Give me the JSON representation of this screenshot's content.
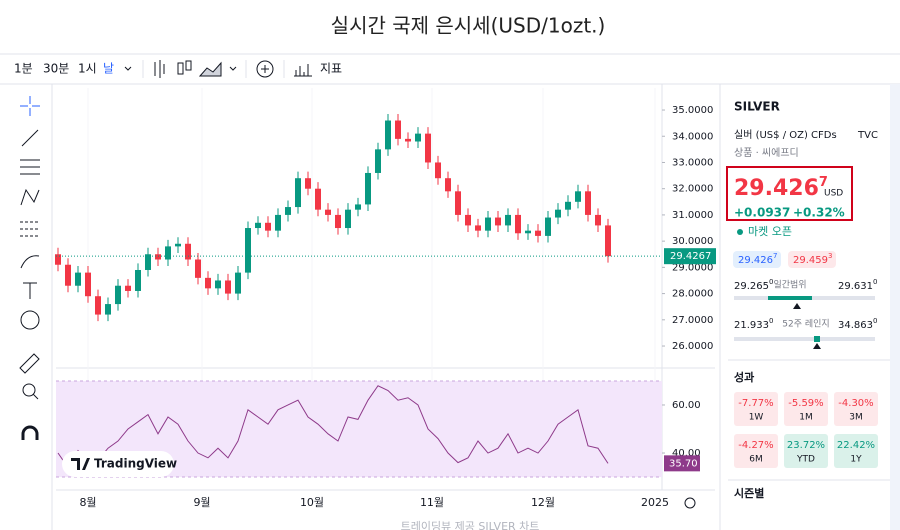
{
  "header": {
    "title": "실시간 국제 은시세(USD/1ozt.)"
  },
  "toolbar": {
    "intervals": [
      "1분",
      "30분",
      "1시",
      "날"
    ],
    "indicators": "지표"
  },
  "chart_data": {
    "type": "candlestick",
    "logo": "TradingView",
    "x": [
      0,
      1,
      2,
      3,
      4,
      5,
      6,
      7,
      8,
      9,
      10,
      11,
      12,
      13,
      14,
      15,
      16,
      17,
      18,
      19,
      20,
      21,
      22,
      23,
      24,
      25,
      26,
      27,
      28,
      29,
      30,
      31,
      32,
      33,
      34,
      35,
      36,
      37,
      38,
      39,
      40,
      41,
      42,
      43,
      44,
      45,
      46,
      47,
      48,
      49,
      50,
      51,
      52,
      53,
      54,
      55
    ],
    "open": [
      29.5,
      29.1,
      28.3,
      28.8,
      27.9,
      27.2,
      27.6,
      28.3,
      28.1,
      28.9,
      29.5,
      29.3,
      29.8,
      29.9,
      29.3,
      28.6,
      28.2,
      28.5,
      28.0,
      28.8,
      30.5,
      30.7,
      30.4,
      31.0,
      31.3,
      32.4,
      32.0,
      31.2,
      31.0,
      30.5,
      31.2,
      31.4,
      32.6,
      33.5,
      34.6,
      33.9,
      33.8,
      34.1,
      33.0,
      32.4,
      31.9,
      31.0,
      30.6,
      30.4,
      30.9,
      30.6,
      31.0,
      30.3,
      30.4,
      30.2,
      30.9,
      31.2,
      31.5,
      31.9,
      31.0,
      30.6
    ],
    "high": [
      29.75,
      29.35,
      29.05,
      29.05,
      28.15,
      27.85,
      28.55,
      28.55,
      29.15,
      29.75,
      29.75,
      30.05,
      30.15,
      30.15,
      29.55,
      28.85,
      28.75,
      28.75,
      29.05,
      30.75,
      30.95,
      30.95,
      31.25,
      31.55,
      32.65,
      32.65,
      32.25,
      31.45,
      31.25,
      31.45,
      31.65,
      32.85,
      33.75,
      34.85,
      34.85,
      34.15,
      34.35,
      34.35,
      33.25,
      32.65,
      32.15,
      31.25,
      30.85,
      31.15,
      31.15,
      31.25,
      31.25,
      30.65,
      30.65,
      31.15,
      31.45,
      31.75,
      32.15,
      32.15,
      31.25,
      30.85
    ],
    "low": [
      28.85,
      28.05,
      28.05,
      27.65,
      26.95,
      26.95,
      27.35,
      27.85,
      27.85,
      28.65,
      29.05,
      29.05,
      29.55,
      29.05,
      28.35,
      27.95,
      27.95,
      27.75,
      27.75,
      28.55,
      30.25,
      30.15,
      30.15,
      30.75,
      31.05,
      31.75,
      30.95,
      30.75,
      30.25,
      30.25,
      30.95,
      31.15,
      32.35,
      33.25,
      33.65,
      33.55,
      33.55,
      32.75,
      32.15,
      31.65,
      30.75,
      30.35,
      30.15,
      30.15,
      30.35,
      30.35,
      30.05,
      30.05,
      29.95,
      29.95,
      30.65,
      30.95,
      31.25,
      30.75,
      30.35,
      29.18
    ],
    "close": [
      29.1,
      28.3,
      28.8,
      27.9,
      27.2,
      27.6,
      28.3,
      28.1,
      28.9,
      29.5,
      29.3,
      29.8,
      29.9,
      29.3,
      28.6,
      28.2,
      28.5,
      28.0,
      28.8,
      30.5,
      30.7,
      30.4,
      31.0,
      31.3,
      32.4,
      32.0,
      31.2,
      31.0,
      30.5,
      31.2,
      31.4,
      32.6,
      33.5,
      34.6,
      33.9,
      33.8,
      34.1,
      33.0,
      32.4,
      31.9,
      31.0,
      30.6,
      30.4,
      30.9,
      30.6,
      31.0,
      30.3,
      30.4,
      30.2,
      30.9,
      31.2,
      31.5,
      31.9,
      31.0,
      30.6,
      29.4267
    ],
    "up_color": "#089981",
    "down_color": "#f23645",
    "xlim": [
      -0.2,
      60.4
    ],
    "xticks": [
      {
        "value": 3,
        "label": "8월"
      },
      {
        "value": 14.4,
        "label": "9월"
      },
      {
        "value": 25.4,
        "label": "10월"
      },
      {
        "value": 37.4,
        "label": "11월"
      },
      {
        "value": 48.5,
        "label": "12월"
      },
      {
        "value": 59.7,
        "label": "2025"
      }
    ],
    "ylim": [
      25.62,
      35.84
    ],
    "yticks": [
      {
        "value": 26,
        "label": "26.0000"
      },
      {
        "value": 27,
        "label": "27.0000"
      },
      {
        "value": 28,
        "label": "28.0000"
      },
      {
        "value": 29,
        "label": "29.0000"
      },
      {
        "value": 30,
        "label": "30.0000"
      },
      {
        "value": 31,
        "label": "31.0000"
      },
      {
        "value": 32,
        "label": "32.0000"
      },
      {
        "value": 33,
        "label": "33.0000"
      },
      {
        "value": 34,
        "label": "34.0000"
      },
      {
        "value": 35,
        "label": "35.0000"
      }
    ],
    "rsi": {
      "color": "#8e3a8a",
      "band": [
        30,
        70
      ],
      "ylim": [
        29.6,
        70.4
      ],
      "yticks": [
        {
          "value": 40,
          "label": "40.00"
        },
        {
          "value": 60,
          "label": "60.00"
        }
      ],
      "values": [
        40,
        34,
        41,
        36,
        37,
        42,
        45,
        50,
        53,
        56,
        48,
        55,
        52,
        45,
        40,
        38,
        42,
        38,
        45,
        58,
        55,
        52,
        58,
        60,
        62,
        55,
        52,
        48,
        45,
        55,
        54,
        62,
        68,
        66,
        62,
        63,
        60,
        50,
        46,
        40,
        36,
        38,
        45,
        40,
        42,
        48,
        40,
        42,
        40,
        45,
        52,
        55,
        58,
        43,
        42,
        35.7
      ],
      "value_labels": [
        null,
        null,
        null,
        null,
        null,
        null,
        null,
        null,
        null,
        null,
        null,
        null,
        null,
        null,
        null,
        null,
        null,
        null,
        null,
        null,
        null,
        null,
        null,
        null,
        null,
        null,
        null,
        null,
        null,
        null,
        null,
        null,
        null,
        null,
        null,
        null,
        null,
        null,
        null,
        null,
        null,
        null,
        null,
        null,
        null,
        null,
        null,
        null,
        null,
        null,
        null,
        null,
        null,
        null,
        null,
        "35.70"
      ]
    }
  },
  "sidebar": {
    "symbol": "SILVER",
    "name": "실버 (US$ / OZ) CFDs",
    "source": "TVC",
    "category": "상품 · 씨에프디",
    "price": {
      "main": "29.426",
      "pip": "7"
    },
    "currency": "USD",
    "change": "+0.0937",
    "change_pct": "+0.32%",
    "status": "마켓 오픈",
    "bid": {
      "main": "29.426",
      "pip": "7"
    },
    "ask": {
      "main": "29.459",
      "pip": "3"
    },
    "day_range": {
      "label": "일간범위",
      "low": {
        "main": "29.265",
        "pip": "0"
      },
      "high": {
        "main": "29.631",
        "pip": "0"
      }
    },
    "year_range": {
      "label": "52주 레인지",
      "low": {
        "main": "21.933",
        "pip": "0"
      },
      "high": {
        "main": "34.863",
        "pip": "0"
      }
    },
    "performance_title": "성과",
    "performance": [
      {
        "value": "-7.77%",
        "period": "1W"
      },
      {
        "value": "-5.59%",
        "period": "1M"
      },
      {
        "value": "-4.30%",
        "period": "3M"
      },
      {
        "value": "-4.27%",
        "period": "6M"
      },
      {
        "value": "23.72%",
        "period": "YTD"
      },
      {
        "value": "22.42%",
        "period": "1Y"
      }
    ],
    "seasonal": "시즌별"
  },
  "footer": "트레이딩뷰 제공 SILVER 차트"
}
